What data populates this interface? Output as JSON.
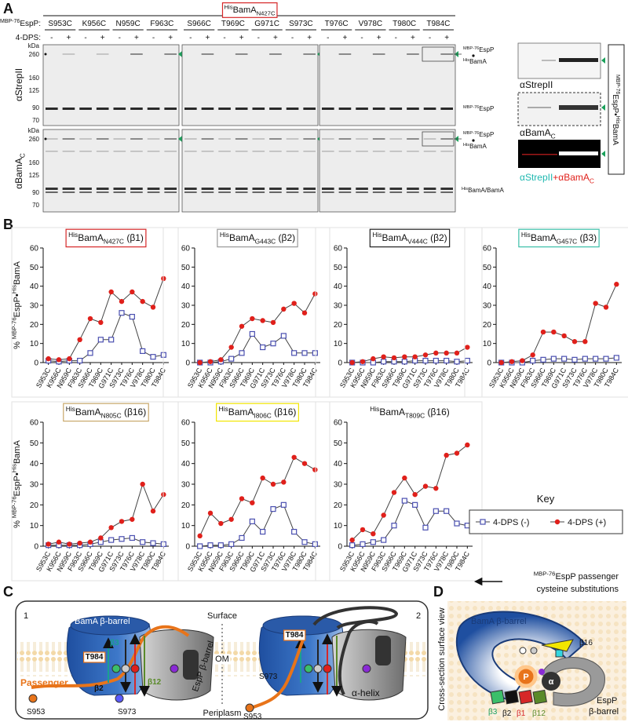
{
  "panel_labels": [
    "A",
    "B",
    "C",
    "D"
  ],
  "panel_a": {
    "construct": [
      {
        "sup": "His"
      },
      "BamA",
      {
        "sub": "N427C"
      }
    ],
    "row_label": [
      {
        "sup": "MBP-76"
      },
      "EspP:"
    ],
    "dps_label": "4-DPS:",
    "lanes": [
      "-",
      "+"
    ],
    "mutants": [
      "S953C",
      "K956C",
      "N959C",
      "F963C",
      "S966C",
      "T969C",
      "G971C",
      "S973C",
      "T976C",
      "V978C",
      "T980C",
      "T984C"
    ],
    "kda": "kDa",
    "markers": [
      260,
      160,
      125,
      90,
      70
    ],
    "complex_top": [
      {
        "sup": "MBP-76"
      },
      "EspP"
    ],
    "complex_bottom": [
      {
        "sup": "His"
      },
      "BamA"
    ],
    "espp_label": [
      {
        "sup": "MBP-76"
      },
      "EspP"
    ],
    "bama_label": [
      {
        "sup": "His"
      },
      "BamA/BamA"
    ],
    "side": {
      "strep": "αStrepII",
      "bama": [
        "αBamA",
        {
          "sub": "C"
        }
      ]
    },
    "side_title": [
      {
        "sup": "MBP-76"
      },
      "EspP•",
      {
        "sup": "His"
      },
      "BamA"
    ],
    "merge_left": "αStrepII",
    "merge_right": [
      "+αBamA",
      {
        "sub": "C"
      }
    ]
  },
  "chart_data": [
    {
      "type": "line",
      "title": [
        {
          "sup": "His"
        },
        "BamA",
        {
          "sub": "N427C"
        },
        " (β1)"
      ],
      "title_box": "#d62728",
      "ylabel": [
        "% ",
        {
          "sup": "MBP-76"
        },
        "EspP•",
        {
          "sup": "His"
        },
        "BamA"
      ],
      "categories": [
        "S953C",
        "K956C",
        "N959C",
        "F963C",
        "S966C",
        "T969C",
        "G971C",
        "S973C",
        "T976C",
        "V978C",
        "T980C",
        "T984C"
      ],
      "ylim": [
        0,
        60
      ],
      "yticks": [
        0,
        10,
        20,
        30,
        40,
        50,
        60
      ],
      "series": [
        {
          "color": "#4a4fb0",
          "marker": "square-open",
          "values": [
            1,
            0.5,
            1,
            1,
            5,
            12,
            12,
            26,
            24,
            6,
            3,
            4
          ]
        },
        {
          "color": "#e0201b",
          "marker": "circle",
          "values": [
            2,
            1.5,
            2,
            12,
            23,
            21,
            37,
            32,
            37,
            32,
            29,
            44
          ]
        }
      ]
    },
    {
      "type": "line",
      "title": [
        {
          "sup": "His"
        },
        "BamA",
        {
          "sub": "G443C"
        },
        " (β2)"
      ],
      "title_box": "#999999",
      "categories": [
        "S953C",
        "K956C",
        "N959C",
        "F963C",
        "S966C",
        "T969C",
        "G971C",
        "S973C",
        "T976C",
        "V978C",
        "T980C",
        "T984C"
      ],
      "ylim": [
        0,
        60
      ],
      "yticks": [
        0,
        10,
        20,
        30,
        40,
        50,
        60
      ],
      "series": [
        {
          "color": "#4a4fb0",
          "marker": "square-open",
          "values": [
            0,
            0,
            0.5,
            2,
            5,
            15,
            8,
            10,
            14,
            5,
            5,
            5
          ]
        },
        {
          "color": "#e0201b",
          "marker": "circle",
          "values": [
            0,
            0.5,
            1.5,
            8,
            19,
            23,
            22,
            21,
            28,
            31,
            26,
            36
          ]
        }
      ]
    },
    {
      "type": "line",
      "title": [
        {
          "sup": "His"
        },
        "BamA",
        {
          "sub": "V444C"
        },
        " (β2)"
      ],
      "title_box": "#222222",
      "categories": [
        "S953C",
        "K956C",
        "N959C",
        "F963C",
        "S966C",
        "T969C",
        "G971C",
        "S973C",
        "T976C",
        "V978C",
        "T980C",
        "T984C"
      ],
      "ylim": [
        0,
        60
      ],
      "yticks": [
        0,
        10,
        20,
        30,
        40,
        50,
        60
      ],
      "series": [
        {
          "color": "#4a4fb0",
          "marker": "square-open",
          "values": [
            0,
            0,
            0,
            0.5,
            0.5,
            0.5,
            1,
            1,
            1,
            1,
            0.5,
            1
          ]
        },
        {
          "color": "#e0201b",
          "marker": "circle",
          "values": [
            0,
            0.5,
            2,
            3,
            2.5,
            3,
            3,
            4,
            5,
            5,
            5,
            8
          ]
        }
      ]
    },
    {
      "type": "line",
      "title": [
        {
          "sup": "His"
        },
        "BamA",
        {
          "sub": "G457C"
        },
        " (β3)"
      ],
      "title_box": "#3bbfa8",
      "categories": [
        "S953C",
        "K956C",
        "N959C",
        "F963C",
        "S966C",
        "T969C",
        "G971C",
        "S973C",
        "T976C",
        "V978C",
        "T980C",
        "T984C"
      ],
      "ylim": [
        0,
        60
      ],
      "yticks": [
        0,
        10,
        20,
        30,
        40,
        50,
        60
      ],
      "series": [
        {
          "color": "#4a4fb0",
          "marker": "square-open",
          "values": [
            0,
            0,
            0,
            1,
            1.5,
            2,
            2,
            1.5,
            2,
            2,
            2,
            2.5
          ]
        },
        {
          "color": "#e0201b",
          "marker": "circle",
          "values": [
            0,
            0.5,
            1,
            4,
            16,
            16,
            14,
            11,
            11,
            31,
            29,
            41
          ]
        }
      ]
    },
    {
      "type": "line",
      "title": [
        {
          "sup": "His"
        },
        "BamA",
        {
          "sub": "N805C"
        },
        " (β16)"
      ],
      "title_box": "#c8a86a",
      "ylabel": [
        "% ",
        {
          "sup": "MBP-76"
        },
        "EspP•",
        {
          "sup": "His"
        },
        "BamA"
      ],
      "categories": [
        "S953C",
        "K956C",
        "N959C",
        "F963C",
        "S966C",
        "T969C",
        "G971C",
        "S973C",
        "T976C",
        "V978C",
        "T980C",
        "T984C"
      ],
      "ylim": [
        0,
        60
      ],
      "yticks": [
        0,
        10,
        20,
        30,
        40,
        50,
        60
      ],
      "series": [
        {
          "color": "#4a4fb0",
          "marker": "square-open",
          "values": [
            0.5,
            0.5,
            0.5,
            0.5,
            1,
            2,
            3,
            3.5,
            4,
            2,
            1.5,
            1
          ]
        },
        {
          "color": "#e0201b",
          "marker": "circle",
          "values": [
            1,
            2,
            1,
            1.5,
            2,
            4,
            9,
            12,
            13,
            30,
            17,
            25
          ]
        }
      ]
    },
    {
      "type": "line",
      "title": [
        {
          "sup": "His"
        },
        "BamA",
        {
          "sub": "I806C"
        },
        " (β16)"
      ],
      "title_box": "#f2e600",
      "categories": [
        "S953C",
        "K956C",
        "N959C",
        "F963C",
        "S966C",
        "T969C",
        "G971C",
        "S973C",
        "T976C",
        "V978C",
        "T980C",
        "T984C"
      ],
      "ylim": [
        0,
        60
      ],
      "yticks": [
        0,
        10,
        20,
        30,
        40,
        50,
        60
      ],
      "series": [
        {
          "color": "#4a4fb0",
          "marker": "square-open",
          "values": [
            0,
            0.5,
            0.5,
            1,
            4,
            12,
            7,
            18,
            20,
            7,
            2,
            1
          ]
        },
        {
          "color": "#e0201b",
          "marker": "circle",
          "values": [
            5,
            16,
            11,
            13,
            23,
            21,
            33,
            30,
            31,
            43,
            40,
            37
          ]
        }
      ]
    },
    {
      "type": "line",
      "title": [
        {
          "sup": "His"
        },
        "BamA",
        {
          "sub": "T809C"
        },
        " (β16)"
      ],
      "categories": [
        "S953C",
        "K956C",
        "N959C",
        "F963C",
        "S966C",
        "T969C",
        "G971C",
        "S973C",
        "T976C",
        "V978C",
        "T980C",
        "T984C"
      ],
      "ylim": [
        0,
        60
      ],
      "yticks": [
        0,
        10,
        20,
        30,
        40,
        50,
        60
      ],
      "legend_title": "Key",
      "series": [
        {
          "name": "4-DPS (-)",
          "color": "#4a4fb0",
          "marker": "square-open",
          "values": [
            0.5,
            1,
            2,
            3,
            10,
            22,
            20,
            9,
            17,
            17,
            11,
            10
          ]
        },
        {
          "name": "4-DPS (+)",
          "color": "#e0201b",
          "marker": "circle",
          "values": [
            3,
            8,
            6,
            15,
            26,
            33,
            25,
            29,
            28,
            44,
            45,
            49
          ]
        }
      ]
    }
  ],
  "note": [
    [
      {
        "sup": "MBP-76"
      },
      "EspP passenger"
    ],
    "cysteine substitutions"
  ],
  "panel_c": {
    "numbers": [
      "1",
      "2"
    ],
    "bama": "BamA β-barrel",
    "surface": "Surface",
    "om": "OM",
    "periplasm": "Periplasm",
    "espp": "EspP β-barrel",
    "passenger": "Passenger",
    "helix": "α-helix",
    "strands": [
      "β3",
      "β2",
      "β12"
    ],
    "residues": [
      "T984",
      "S953",
      "S973"
    ]
  },
  "panel_d": {
    "title": "Cross-section surface view",
    "bama": "BamA β-barrel",
    "p": "P",
    "alpha": "α",
    "strands": [
      "β16",
      "β3",
      "β2",
      "β1",
      "β12"
    ],
    "espp": [
      "EspP",
      "β-barrel"
    ]
  }
}
